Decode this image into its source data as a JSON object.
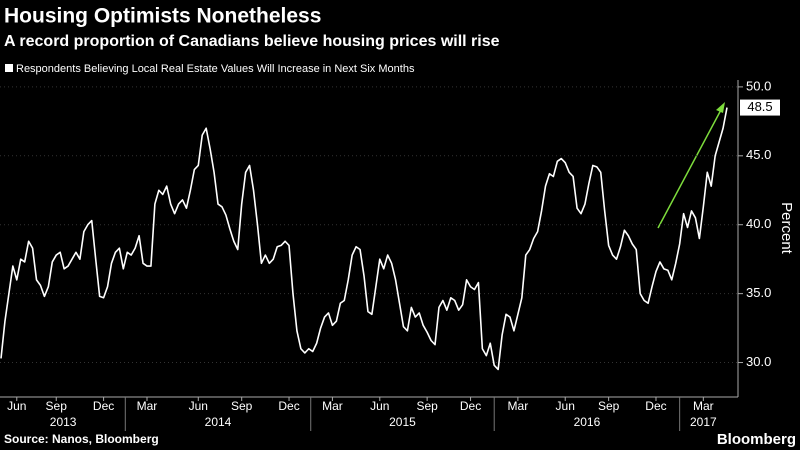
{
  "chart_data": {
    "type": "line",
    "title": "Housing Optimists Nonetheless",
    "subtitle": "A record proportion of Canadians believe housing prices will rise",
    "y_axis_label": "Percent",
    "source": "Source: Nanos, Bloomberg",
    "brand": "Bloomberg",
    "categories": [
      null,
      null,
      null,
      null,
      "Jun",
      null,
      null,
      null,
      null,
      null,
      null,
      null,
      null,
      null,
      "Sep",
      null,
      null,
      null,
      null,
      null,
      null,
      null,
      null,
      null,
      null,
      null,
      "Dec",
      null,
      null,
      null,
      null,
      null,
      null,
      null,
      null,
      null,
      null,
      "Mar",
      null,
      null,
      null,
      null,
      null,
      null,
      null,
      null,
      null,
      null,
      null,
      null,
      "Jun",
      null,
      null,
      null,
      null,
      null,
      null,
      null,
      null,
      null,
      null,
      "Sep",
      null,
      null,
      null,
      null,
      null,
      null,
      null,
      null,
      null,
      null,
      null,
      "Dec",
      null,
      null,
      null,
      null,
      null,
      null,
      null,
      null,
      null,
      null,
      "Mar",
      null,
      null,
      null,
      null,
      null,
      null,
      null,
      null,
      null,
      null,
      null,
      "Jun",
      null,
      null,
      null,
      null,
      null,
      null,
      null,
      null,
      null,
      null,
      null,
      "Sep",
      null,
      null,
      null,
      null,
      null,
      null,
      null,
      null,
      null,
      null,
      "Dec",
      null,
      null,
      null,
      null,
      null,
      null,
      null,
      null,
      null,
      null,
      null,
      "Mar",
      null,
      null,
      null,
      null,
      null,
      null,
      null,
      null,
      null,
      null,
      null,
      "Jun",
      null,
      null,
      null,
      null,
      null,
      null,
      null,
      null,
      null,
      null,
      "Sep",
      null,
      null,
      null,
      null,
      null,
      null,
      null,
      null,
      null,
      null,
      null,
      "Dec",
      null,
      null,
      null,
      null,
      null,
      null,
      null,
      null,
      null,
      null,
      null,
      "Mar",
      null,
      null,
      null,
      null,
      null,
      null
    ],
    "x_groups": [
      "2013",
      "2014",
      "2015",
      "2016",
      "2017"
    ],
    "series": [
      {
        "name": "Respondents Believing Local Real Estate Values Will Increase in Next Six Months",
        "color": "#ffffff",
        "values": [
          30.3,
          33,
          35,
          37,
          36,
          37.5,
          37.3,
          38.8,
          38.3,
          36,
          35.6,
          34.8,
          35.5,
          37.3,
          37.8,
          38,
          36.8,
          37,
          37.5,
          38,
          37.5,
          39.5,
          40,
          40.3,
          37.5,
          34.8,
          34.7,
          35.5,
          37.2,
          38,
          38.3,
          36.8,
          38,
          37.8,
          38.3,
          39.2,
          37.2,
          37,
          37,
          41.5,
          42.5,
          42.2,
          42.8,
          41.5,
          40.8,
          41.5,
          41.8,
          41.2,
          42.5,
          44,
          44.3,
          46.5,
          47,
          45.5,
          43.8,
          41.5,
          41.3,
          40.7,
          39.7,
          38.8,
          38.2,
          41.5,
          43.8,
          44.3,
          42.5,
          40,
          37.2,
          37.8,
          37.2,
          37.5,
          38.4,
          38.5,
          38.8,
          38.5,
          35,
          32.3,
          31,
          30.7,
          31,
          30.8,
          31.4,
          32.5,
          33.3,
          33.6,
          32.7,
          33,
          34.3,
          34.5,
          36,
          37.8,
          38.4,
          38.2,
          36.3,
          33.7,
          33.5,
          35.5,
          37.5,
          36.8,
          37.8,
          37.2,
          36,
          34.3,
          32.6,
          32.3,
          34,
          33.3,
          33.6,
          32.7,
          32.2,
          31.6,
          31.3,
          34,
          34.5,
          33.8,
          34.7,
          34.5,
          33.8,
          34.2,
          36,
          35.5,
          35.3,
          35.8,
          31,
          30.5,
          31.4,
          29.8,
          29.5,
          32,
          33.5,
          33.3,
          32.3,
          33.5,
          34.7,
          37.8,
          38.2,
          39,
          39.5,
          41,
          42.8,
          43.7,
          43.5,
          44.6,
          44.8,
          44.5,
          43.8,
          43.5,
          41.2,
          40.8,
          41.5,
          43,
          44.3,
          44.2,
          43.8,
          41,
          38.5,
          37.8,
          37.5,
          38.4,
          39.6,
          39.2,
          38.6,
          38.2,
          35,
          34.5,
          34.3,
          35.5,
          36.6,
          37.3,
          36.8,
          36.7,
          36,
          37.2,
          38.6,
          40.8,
          39.8,
          41,
          40.5,
          39,
          41.3,
          43.8,
          42.8,
          45,
          46,
          47,
          48.5
        ]
      }
    ],
    "ylim": [
      27.5,
      50.5
    ],
    "yticks": [
      {
        "value": 30,
        "label": "30.0"
      },
      {
        "value": 35,
        "label": "35.0"
      },
      {
        "value": 40,
        "label": "40.0"
      },
      {
        "value": 45,
        "label": "45.0"
      },
      {
        "value": 50,
        "label": "50.0"
      }
    ],
    "grid": true,
    "last_value_label": true
  }
}
